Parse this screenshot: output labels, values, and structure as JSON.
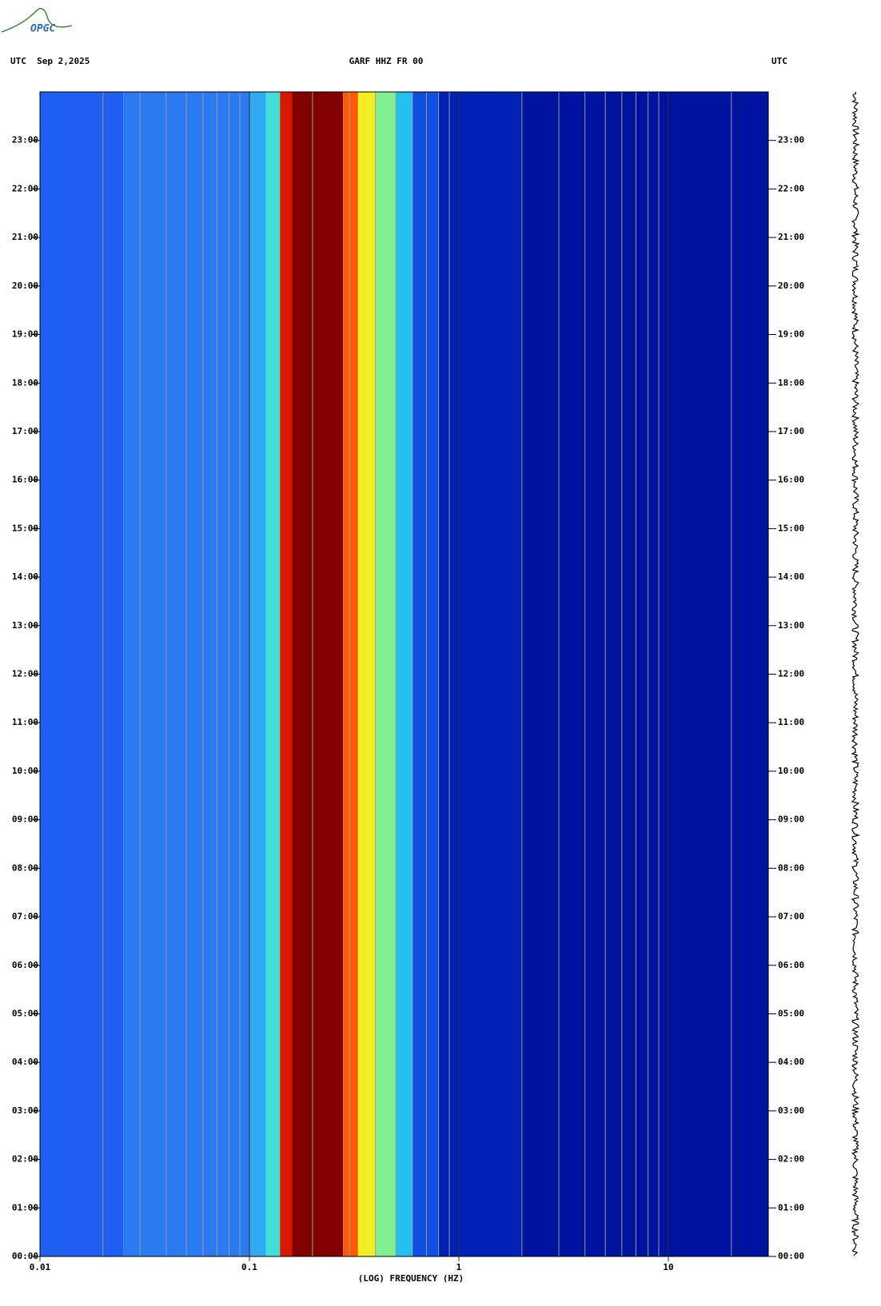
{
  "logo": "OPGC",
  "chart_data": {
    "type": "spectrogram",
    "title": "GARF HHZ FR 00",
    "left_header": "UTC  Sep 2,2025",
    "right_header": "UTC",
    "xlabel": "(LOG) FREQUENCY (HZ)",
    "log_x": true,
    "xlim": [
      0.01,
      30
    ],
    "xticks": [
      0.01,
      0.1,
      1,
      10
    ],
    "xminorticks": [
      0.02,
      0.03,
      0.04,
      0.05,
      0.06,
      0.07,
      0.08,
      0.09,
      0.2,
      0.3,
      0.4,
      0.5,
      0.6,
      0.7,
      0.8,
      0.9,
      2,
      3,
      4,
      5,
      6,
      7,
      8,
      9,
      20
    ],
    "ylim": [
      0,
      24
    ],
    "yticks": [
      {
        "value": 0,
        "label": "00:00"
      },
      {
        "value": 1,
        "label": "01:00"
      },
      {
        "value": 2,
        "label": "02:00"
      },
      {
        "value": 3,
        "label": "03:00"
      },
      {
        "value": 4,
        "label": "04:00"
      },
      {
        "value": 5,
        "label": "05:00"
      },
      {
        "value": 6,
        "label": "06:00"
      },
      {
        "value": 7,
        "label": "07:00"
      },
      {
        "value": 8,
        "label": "08:00"
      },
      {
        "value": 9,
        "label": "09:00"
      },
      {
        "value": 10,
        "label": "10:00"
      },
      {
        "value": 11,
        "label": "11:00"
      },
      {
        "value": 12,
        "label": "12:00"
      },
      {
        "value": 13,
        "label": "13:00"
      },
      {
        "value": 14,
        "label": "14:00"
      },
      {
        "value": 15,
        "label": "15:00"
      },
      {
        "value": 16,
        "label": "16:00"
      },
      {
        "value": 17,
        "label": "17:00"
      },
      {
        "value": 18,
        "label": "18:00"
      },
      {
        "value": 19,
        "label": "19:00"
      },
      {
        "value": 20,
        "label": "20:00"
      },
      {
        "value": 21,
        "label": "21:00"
      },
      {
        "value": 22,
        "label": "22:00"
      },
      {
        "value": 23,
        "label": "23:00"
      }
    ],
    "bands": [
      {
        "from": 0.01,
        "to": 0.025,
        "color": "#1e5ef0"
      },
      {
        "from": 0.025,
        "to": 0.1,
        "color": "#2a7af2"
      },
      {
        "from": 0.1,
        "to": 0.12,
        "color": "#30aaf0"
      },
      {
        "from": 0.12,
        "to": 0.14,
        "color": "#40e0d8"
      },
      {
        "from": 0.14,
        "to": 0.16,
        "color": "#d81800"
      },
      {
        "from": 0.16,
        "to": 0.28,
        "color": "#800000"
      },
      {
        "from": 0.28,
        "to": 0.33,
        "color": "#ff5a00"
      },
      {
        "from": 0.33,
        "to": 0.4,
        "color": "#f0f020"
      },
      {
        "from": 0.4,
        "to": 0.5,
        "color": "#80f090"
      },
      {
        "from": 0.5,
        "to": 0.6,
        "color": "#20c0f0"
      },
      {
        "from": 0.6,
        "to": 0.8,
        "color": "#1050e0"
      },
      {
        "from": 0.8,
        "to": 2,
        "color": "#0022b4"
      },
      {
        "from": 2,
        "to": 30,
        "color": "#0012a0"
      }
    ]
  }
}
